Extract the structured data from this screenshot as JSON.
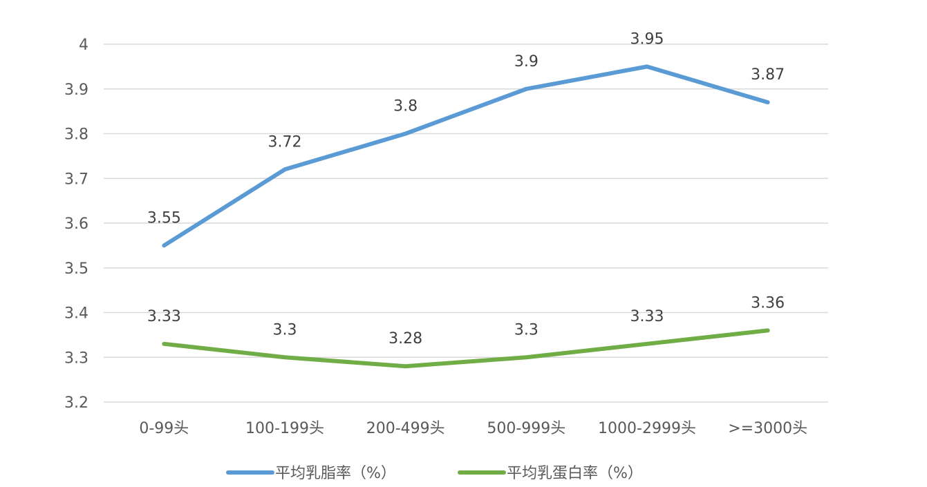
{
  "chart_data": {
    "type": "line",
    "categories": [
      "0-99头",
      "100-199头",
      "200-499头",
      "500-999头",
      "1000-2999头",
      ">=3000头"
    ],
    "series": [
      {
        "name": "平均乳脂率（%）",
        "values": [
          3.55,
          3.72,
          3.8,
          3.9,
          3.95,
          3.87
        ],
        "color": "#5B9BD5"
      },
      {
        "name": "平均乳蛋白率（%）",
        "values": [
          3.33,
          3.3,
          3.28,
          3.3,
          3.33,
          3.36
        ],
        "color": "#70AD47"
      }
    ],
    "yticks": [
      "3.2",
      "3.3",
      "3.4",
      "3.5",
      "3.6",
      "3.7",
      "3.8",
      "3.9",
      "4"
    ],
    "ylim": [
      3.2,
      4.0
    ],
    "grid": true,
    "legend_position": "bottom",
    "gridline_color": "#D9D9D9"
  }
}
